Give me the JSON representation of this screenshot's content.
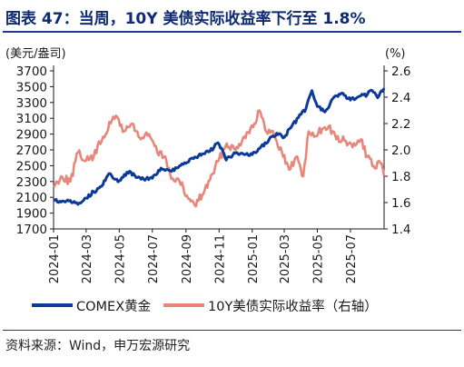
{
  "title": "图表 47：当周，10Y 美债实际收益率下行至 1.8%",
  "source": "资料来源：Wind，申万宏源研究",
  "colors": {
    "gold": "#0b3a9a",
    "yield": "#e8867a",
    "title": "#0d2a72",
    "axis": "#1a1a1a"
  },
  "chart_data": {
    "type": "line",
    "left_axis": {
      "unit_label": "(美元/盎司)",
      "ylim": [
        1700,
        3700
      ],
      "ticks": [
        1700,
        1900,
        2100,
        2300,
        2500,
        2700,
        2900,
        3100,
        3300,
        3500,
        3700
      ],
      "tick_labels": [
        "1700",
        "1900",
        "2100",
        "2300",
        "2500",
        "2700",
        "2900",
        "3100",
        "3300",
        "3500",
        "3700"
      ]
    },
    "right_axis": {
      "unit_label": "(%)",
      "ylim": [
        1.4,
        2.6
      ],
      "ticks": [
        1.4,
        1.6,
        1.8,
        2.0,
        2.2,
        2.4,
        2.6
      ],
      "tick_labels": [
        "1.4",
        "1.6",
        "1.8",
        "2.0",
        "2.2",
        "2.4",
        "2.6"
      ]
    },
    "x_axis": {
      "range": [
        "2024-01",
        "2025-09"
      ],
      "ticks": [
        "2024-01",
        "2024-03",
        "2024-05",
        "2024-07",
        "2024-09",
        "2024-11",
        "2025-01",
        "2025-03",
        "2025-05",
        "2025-07"
      ],
      "tick_labels": [
        "2024-01",
        "2024-03",
        "2024-05",
        "2024-07",
        "2024-09",
        "2024-11",
        "2025-01",
        "2025-03",
        "2025-05",
        "2025-07"
      ]
    },
    "legend_position": "bottom",
    "series": [
      {
        "name": "COMEX黄金",
        "axis": "left",
        "points": [
          [
            "2024-01-01",
            2070
          ],
          [
            "2024-01-15",
            2040
          ],
          [
            "2024-02-01",
            2060
          ],
          [
            "2024-02-15",
            2010
          ],
          [
            "2024-03-01",
            2090
          ],
          [
            "2024-03-15",
            2170
          ],
          [
            "2024-04-01",
            2260
          ],
          [
            "2024-04-12",
            2400
          ],
          [
            "2024-04-22",
            2330
          ],
          [
            "2024-05-01",
            2310
          ],
          [
            "2024-05-20",
            2430
          ],
          [
            "2024-06-01",
            2350
          ],
          [
            "2024-06-15",
            2330
          ],
          [
            "2024-07-01",
            2340
          ],
          [
            "2024-07-17",
            2470
          ],
          [
            "2024-08-01",
            2440
          ],
          [
            "2024-08-15",
            2470
          ],
          [
            "2024-09-01",
            2530
          ],
          [
            "2024-09-15",
            2590
          ],
          [
            "2024-10-01",
            2650
          ],
          [
            "2024-10-15",
            2680
          ],
          [
            "2024-10-30",
            2790
          ],
          [
            "2024-11-08",
            2680
          ],
          [
            "2024-11-14",
            2570
          ],
          [
            "2024-12-01",
            2660
          ],
          [
            "2024-12-15",
            2650
          ],
          [
            "2025-01-01",
            2640
          ],
          [
            "2025-01-15",
            2720
          ],
          [
            "2025-02-01",
            2830
          ],
          [
            "2025-02-15",
            2910
          ],
          [
            "2025-03-01",
            2860
          ],
          [
            "2025-03-15",
            3000
          ],
          [
            "2025-04-01",
            3150
          ],
          [
            "2025-04-10",
            3220
          ],
          [
            "2025-04-21",
            3450
          ],
          [
            "2025-05-01",
            3250
          ],
          [
            "2025-05-15",
            3180
          ],
          [
            "2025-06-01",
            3370
          ],
          [
            "2025-06-15",
            3420
          ],
          [
            "2025-07-01",
            3330
          ],
          [
            "2025-07-15",
            3370
          ],
          [
            "2025-08-01",
            3400
          ],
          [
            "2025-08-10",
            3450
          ],
          [
            "2025-08-20",
            3360
          ],
          [
            "2025-09-01",
            3480
          ]
        ]
      },
      {
        "name": "10Y美债实际收益率（右轴）",
        "axis": "right",
        "points": [
          [
            "2024-01-01",
            1.72
          ],
          [
            "2024-01-15",
            1.8
          ],
          [
            "2024-02-01",
            1.76
          ],
          [
            "2024-02-15",
            1.98
          ],
          [
            "2024-03-01",
            1.92
          ],
          [
            "2024-03-15",
            1.95
          ],
          [
            "2024-04-01",
            2.1
          ],
          [
            "2024-04-15",
            2.2
          ],
          [
            "2024-04-25",
            2.26
          ],
          [
            "2024-05-10",
            2.14
          ],
          [
            "2024-05-25",
            2.2
          ],
          [
            "2024-06-10",
            2.08
          ],
          [
            "2024-06-25",
            2.12
          ],
          [
            "2024-07-10",
            1.98
          ],
          [
            "2024-07-25",
            1.95
          ],
          [
            "2024-08-05",
            1.78
          ],
          [
            "2024-08-20",
            1.76
          ],
          [
            "2024-09-05",
            1.63
          ],
          [
            "2024-09-17",
            1.58
          ],
          [
            "2024-10-01",
            1.66
          ],
          [
            "2024-10-15",
            1.77
          ],
          [
            "2024-11-01",
            1.93
          ],
          [
            "2024-11-15",
            2.05
          ],
          [
            "2024-12-01",
            2.0
          ],
          [
            "2024-12-15",
            2.09
          ],
          [
            "2025-01-05",
            2.2
          ],
          [
            "2025-01-14",
            2.3
          ],
          [
            "2025-01-25",
            2.15
          ],
          [
            "2025-02-10",
            2.12
          ],
          [
            "2025-02-25",
            1.98
          ],
          [
            "2025-03-10",
            1.85
          ],
          [
            "2025-03-25",
            1.95
          ],
          [
            "2025-04-05",
            1.8
          ],
          [
            "2025-04-15",
            2.14
          ],
          [
            "2025-04-25",
            2.1
          ],
          [
            "2025-05-10",
            2.16
          ],
          [
            "2025-05-22",
            2.18
          ],
          [
            "2025-06-05",
            2.08
          ],
          [
            "2025-06-20",
            2.07
          ],
          [
            "2025-07-05",
            2.02
          ],
          [
            "2025-07-20",
            2.08
          ],
          [
            "2025-08-01",
            1.95
          ],
          [
            "2025-08-15",
            1.86
          ],
          [
            "2025-08-25",
            1.9
          ],
          [
            "2025-09-01",
            1.8
          ]
        ]
      }
    ]
  }
}
